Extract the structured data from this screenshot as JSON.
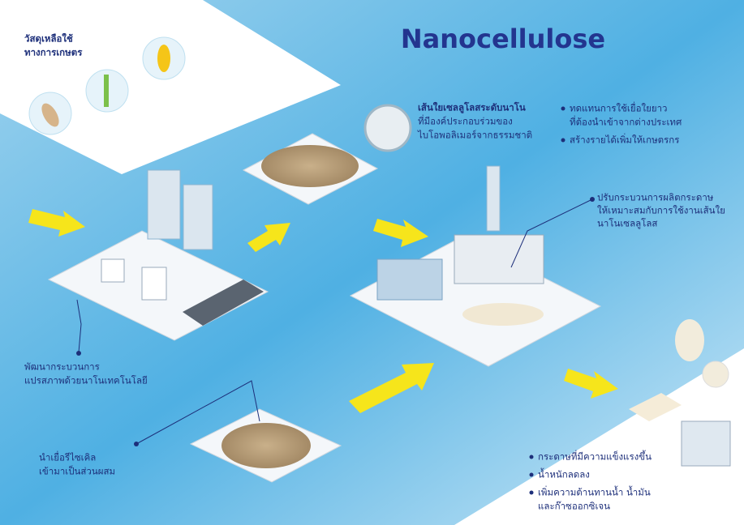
{
  "title": "Nanocellulose",
  "agri_waste": {
    "lines": [
      "วัสดุเหลือใช้",
      "ทางการเกษตร"
    ]
  },
  "nano_fiber": {
    "heading": "เส้นใยเซลลูโลสระดับนาโน",
    "lines": [
      "ที่มีองค์ประกอบร่วมของ",
      "ไบโอพอลิเมอร์จากธรรมชาติ"
    ]
  },
  "benefits": [
    {
      "lines": [
        "ทดแทนการใช้เยื่อใยยาว",
        "ที่ต้องนำเข้าจากต่างประเทศ"
      ]
    },
    {
      "lines": [
        "สร้างรายได้เพิ่มให้เกษตรกร"
      ]
    }
  ],
  "paper_process": {
    "lines": [
      "ปรับกระบวนการผลิตกระดาษ",
      "ให้เหมาะสมกับการใช้งานเส้นใย",
      "นาโนเซลลูโลส"
    ]
  },
  "nano_process": {
    "lines": [
      "พัฒนากระบวนการ",
      "แปรสภาพด้วยนาโนเทคโนโลยี"
    ]
  },
  "recycle": {
    "lines": [
      "นำเยื่อรีไซเคิล",
      "เข้ามาเป็นส่วนผสม"
    ]
  },
  "results": [
    {
      "lines": [
        "กระดาษที่มีความแข็งแรงขึ้น"
      ]
    },
    {
      "lines": [
        "น้ำหนักลดลง"
      ]
    },
    {
      "lines": [
        "เพิ่มความต้านทานน้ำ น้ำมัน",
        "และก๊าซออกซิเจน"
      ]
    }
  ]
}
